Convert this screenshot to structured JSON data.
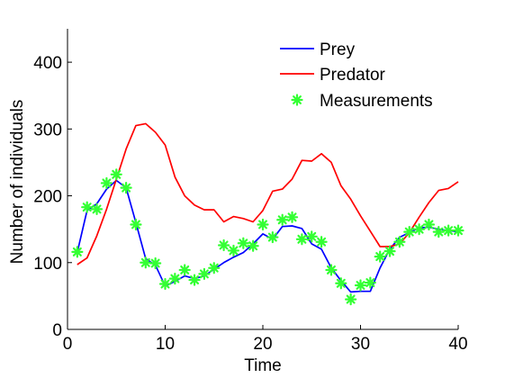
{
  "chart_data": {
    "type": "line",
    "xlabel": "Time",
    "ylabel": "Number of individuals",
    "xlim": [
      0,
      40
    ],
    "ylim": [
      0,
      450
    ],
    "xticks": [
      0,
      10,
      20,
      30,
      40
    ],
    "yticks": [
      0,
      100,
      200,
      300,
      400
    ],
    "grid": false,
    "legend_position": "top-right",
    "series": [
      {
        "name": "Prey",
        "kind": "line",
        "color": "#0000ff",
        "x": [
          1,
          2,
          3,
          4,
          5,
          6,
          7,
          8,
          9,
          10,
          11,
          12,
          13,
          14,
          15,
          16,
          17,
          18,
          19,
          20,
          21,
          22,
          23,
          24,
          25,
          26,
          27,
          28,
          29,
          30,
          31,
          32,
          33,
          34,
          35,
          36,
          37,
          38,
          39,
          40
        ],
        "y": [
          115,
          178,
          188,
          210,
          223,
          212,
          160,
          106,
          96,
          65,
          72,
          80,
          76,
          80,
          90,
          100,
          108,
          115,
          128,
          143,
          135,
          154,
          155,
          151,
          128,
          120,
          92,
          73,
          56,
          57,
          57,
          92,
          120,
          138,
          145,
          152,
          153,
          150,
          148,
          146
        ]
      },
      {
        "name": "Predator",
        "kind": "line",
        "color": "#ff0000",
        "x": [
          1,
          2,
          3,
          4,
          5,
          6,
          7,
          8,
          9,
          10,
          11,
          12,
          13,
          14,
          15,
          16,
          17,
          18,
          19,
          20,
          21,
          22,
          23,
          24,
          25,
          26,
          27,
          28,
          29,
          30,
          31,
          32,
          33,
          34,
          35,
          36,
          37,
          38,
          39,
          40
        ],
        "y": [
          97,
          107,
          140,
          180,
          225,
          270,
          305,
          308,
          295,
          276,
          228,
          200,
          186,
          179,
          179,
          161,
          169,
          166,
          161,
          178,
          207,
          210,
          225,
          253,
          252,
          263,
          250,
          215,
          195,
          170,
          147,
          124,
          124,
          128,
          145,
          168,
          190,
          208,
          211,
          221
        ]
      },
      {
        "name": "Measurements",
        "kind": "scatter",
        "marker": "*",
        "color": "#33ff33",
        "x": [
          1,
          2,
          3,
          4,
          5,
          6,
          7,
          8,
          9,
          10,
          11,
          12,
          13,
          14,
          15,
          16,
          17,
          18,
          19,
          20,
          21,
          22,
          23,
          24,
          25,
          26,
          27,
          28,
          29,
          30,
          31,
          32,
          33,
          34,
          35,
          36,
          37,
          38,
          39,
          40
        ],
        "y": [
          116,
          183,
          180,
          219,
          232,
          212,
          157,
          100,
          99,
          68,
          76,
          89,
          74,
          83,
          92,
          126,
          118,
          129,
          125,
          157,
          138,
          164,
          168,
          135,
          139,
          131,
          89,
          69,
          45,
          66,
          70,
          109,
          117,
          131,
          146,
          150,
          157,
          146,
          148,
          148
        ]
      }
    ]
  }
}
